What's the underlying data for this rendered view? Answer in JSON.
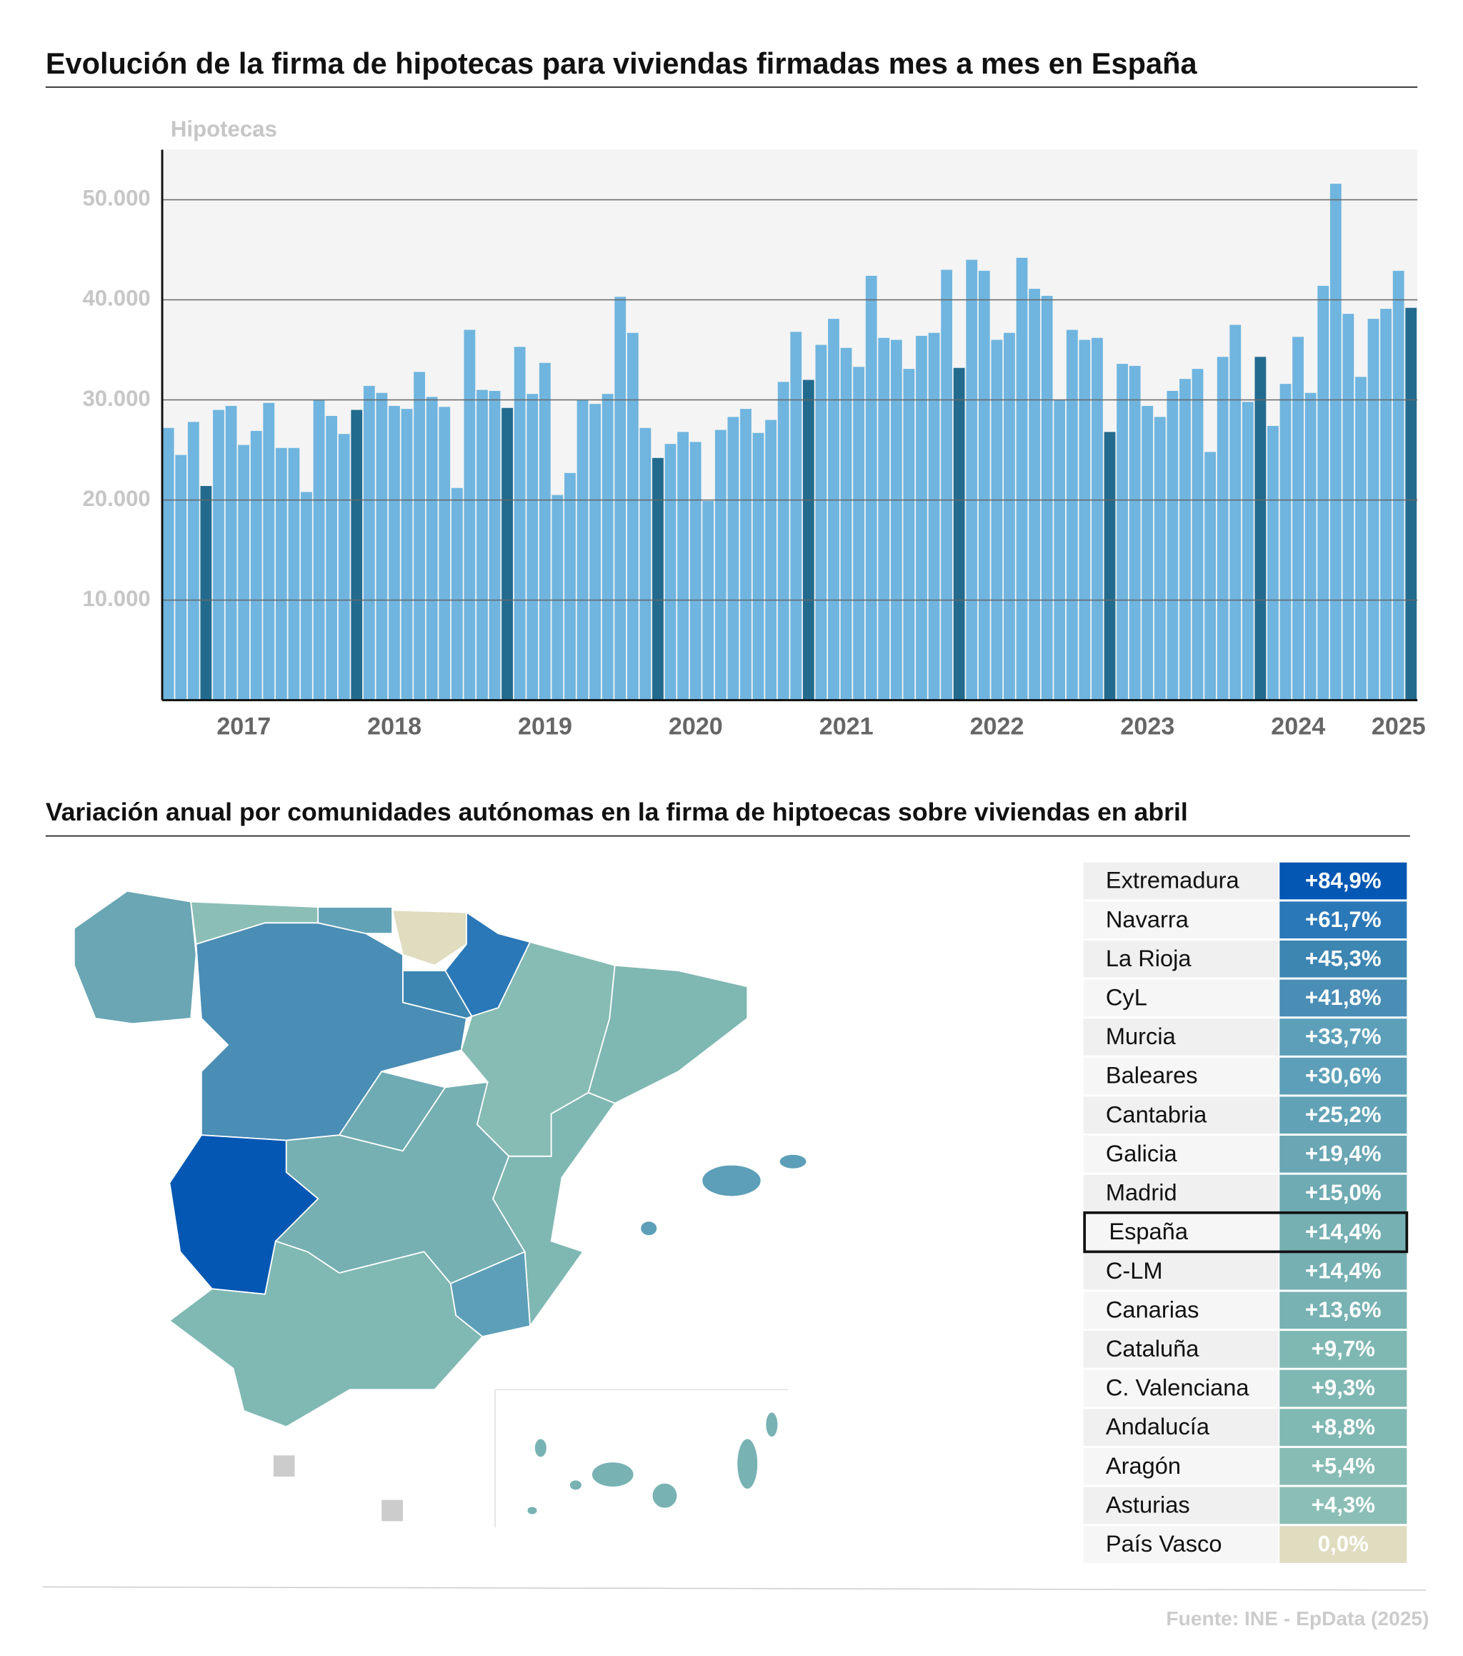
{
  "chart_data": {
    "type": "bar",
    "title": "Evolución de la firma de hipotecas para viviendas firmadas mes a mes en España",
    "y_label": "Hipotecas",
    "categories": [
      null,
      null,
      null,
      null,
      null,
      null,
      "2017",
      null,
      null,
      null,
      null,
      null,
      null,
      null,
      null,
      null,
      null,
      null,
      "2018",
      null,
      null,
      null,
      null,
      null,
      null,
      null,
      null,
      null,
      null,
      null,
      "2019",
      null,
      null,
      null,
      null,
      null,
      null,
      null,
      null,
      null,
      null,
      null,
      "2020",
      null,
      null,
      null,
      null,
      null,
      null,
      null,
      null,
      null,
      null,
      null,
      "2021",
      null,
      null,
      null,
      null,
      null,
      null,
      null,
      null,
      null,
      null,
      null,
      "2022",
      null,
      null,
      null,
      null,
      null,
      null,
      null,
      null,
      null,
      null,
      null,
      "2023",
      null,
      null,
      null,
      null,
      null,
      null,
      null,
      null,
      null,
      null,
      null,
      "2024",
      null,
      null,
      null,
      null,
      null,
      null,
      null,
      "2025",
      null
    ],
    "values": [
      27200,
      24500,
      27800,
      21400,
      29000,
      29400,
      25500,
      26900,
      29700,
      25200,
      25200,
      20800,
      30000,
      28400,
      26600,
      29000,
      31400,
      30700,
      29400,
      29100,
      32800,
      30300,
      29300,
      21200,
      37000,
      31000,
      30900,
      29200,
      35300,
      30600,
      33700,
      20500,
      22700,
      30000,
      29600,
      30600,
      40300,
      36700,
      27200,
      24200,
      25600,
      26800,
      25800,
      19900,
      27000,
      28300,
      29100,
      26700,
      28000,
      31800,
      36800,
      32000,
      35500,
      38100,
      35200,
      33300,
      42400,
      36200,
      36000,
      33100,
      36400,
      36700,
      43000,
      33200,
      44000,
      42900,
      36000,
      36700,
      44200,
      41100,
      40400,
      30000,
      37000,
      36000,
      36200,
      26800,
      33600,
      33400,
      29400,
      28300,
      30900,
      32100,
      33100,
      24800,
      34300,
      37500,
      29800,
      34300,
      27400,
      31600,
      36300,
      30700,
      41400,
      51600,
      38600,
      32300,
      38100,
      39100,
      42900,
      39200
    ],
    "color": "#6fb5df",
    "highlight_color": "#236b8e",
    "ylim": [
      0,
      55000
    ],
    "yticks": [
      {
        "value": 10000,
        "label": "10.000"
      },
      {
        "value": 20000,
        "label": "20.000"
      },
      {
        "value": 30000,
        "label": "30.000"
      },
      {
        "value": 40000,
        "label": "40.000"
      },
      {
        "value": 50000,
        "label": "50.000"
      }
    ],
    "grid": true
  },
  "regional": {
    "title": "Variación anual por comunidades autónomas en la firma de hiptoecas sobre viviendas en abril",
    "rows": [
      {
        "name": "Extremadura",
        "value": "+84,9%",
        "color": "#0457b3"
      },
      {
        "name": "Navarra",
        "value": "+61,7%",
        "color": "#2b78b8"
      },
      {
        "name": "La Rioja",
        "value": "+45,3%",
        "color": "#3d86b2"
      },
      {
        "name": "CyL",
        "value": "+41,8%",
        "color": "#4a8db5"
      },
      {
        "name": "Murcia",
        "value": "+33,7%",
        "color": "#5d9fb9"
      },
      {
        "name": "Baleares",
        "value": "+30,6%",
        "color": "#5d9fb9"
      },
      {
        "name": "Cantabria",
        "value": "+25,2%",
        "color": "#62a2b6"
      },
      {
        "name": "Galicia",
        "value": "+19,4%",
        "color": "#6aa6b4"
      },
      {
        "name": "Madrid",
        "value": "+15,0%",
        "color": "#6fabb3"
      },
      {
        "name": "España",
        "value": "+14,4%",
        "color": "#76b0b3",
        "highlight": true
      },
      {
        "name": "C-LM",
        "value": "+14,4%",
        "color": "#76b0b3"
      },
      {
        "name": "Canarias",
        "value": "+13,6%",
        "color": "#78b2b3"
      },
      {
        "name": "Cataluña",
        "value": "+9,7%",
        "color": "#7fb7b3"
      },
      {
        "name": "C. Valenciana",
        "value": "+9,3%",
        "color": "#7fb7b3"
      },
      {
        "name": "Andalucía",
        "value": "+8,8%",
        "color": "#80b8b3"
      },
      {
        "name": "Aragón",
        "value": "+5,4%",
        "color": "#86bcb4"
      },
      {
        "name": "Asturias",
        "value": "+4,3%",
        "color": "#8bbfb6"
      },
      {
        "name": "País Vasco",
        "value": "0,0%",
        "color": "#e0dcc0"
      }
    ]
  },
  "source": "Fuente: INE - EpData (2025)"
}
